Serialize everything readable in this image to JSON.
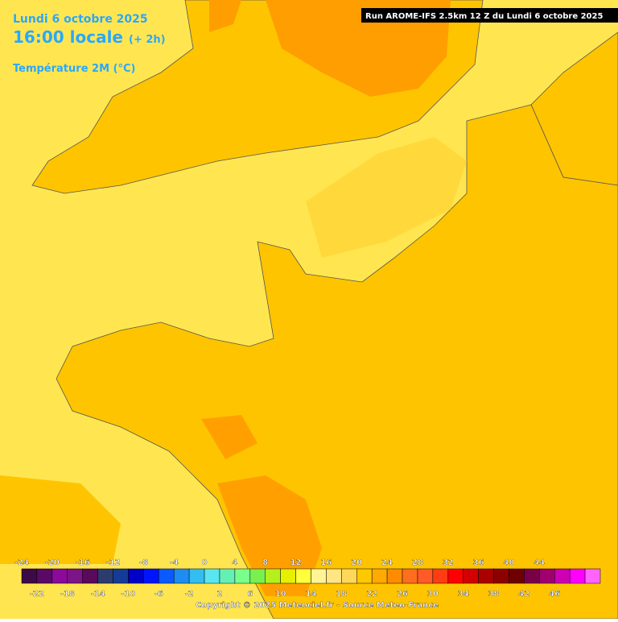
{
  "header": {
    "date": "Lundi 6 octobre 2025",
    "time": "16:00 locale",
    "offset": "(+ 2h)",
    "parameter": "Température 2M (°C)",
    "run": "Run AROME-IFS 2.5km 12 Z du Lundi 6 octobre 2025"
  },
  "legend": {
    "top_labels": [
      -24,
      -20,
      -16,
      -12,
      -8,
      -4,
      0,
      4,
      8,
      12,
      16,
      20,
      24,
      28,
      32,
      36,
      40,
      44
    ],
    "bottom_labels": [
      -22,
      -18,
      -14,
      -10,
      -6,
      -2,
      2,
      6,
      10,
      14,
      18,
      22,
      26,
      30,
      34,
      38,
      42,
      46
    ],
    "colors": [
      "#3c0a46",
      "#5a0a64",
      "#8c0a9b",
      "#7d1487",
      "#5a0a5a",
      "#2d3c6e",
      "#143c96",
      "#0000c8",
      "#0014ff",
      "#0a5aff",
      "#1e8cf0",
      "#32bef0",
      "#5ae6f0",
      "#64f0b4",
      "#78ff8c",
      "#78f050",
      "#b4f01e",
      "#e6f000",
      "#ffff3c",
      "#fff596",
      "#ffe682",
      "#ffd75a",
      "#ffc800",
      "#ffaa00",
      "#ff8c00",
      "#ff6e1e",
      "#ff5a28",
      "#ff3c14",
      "#ff0000",
      "#d20000",
      "#aa0000",
      "#8c0000",
      "#6e0000",
      "#780046",
      "#a0006e",
      "#cd00b4",
      "#ff00ff",
      "#ff64ff"
    ]
  },
  "footer": {
    "copyright": "Copyright © 2025 Meteociel.fr - Source Meteo-France"
  }
}
